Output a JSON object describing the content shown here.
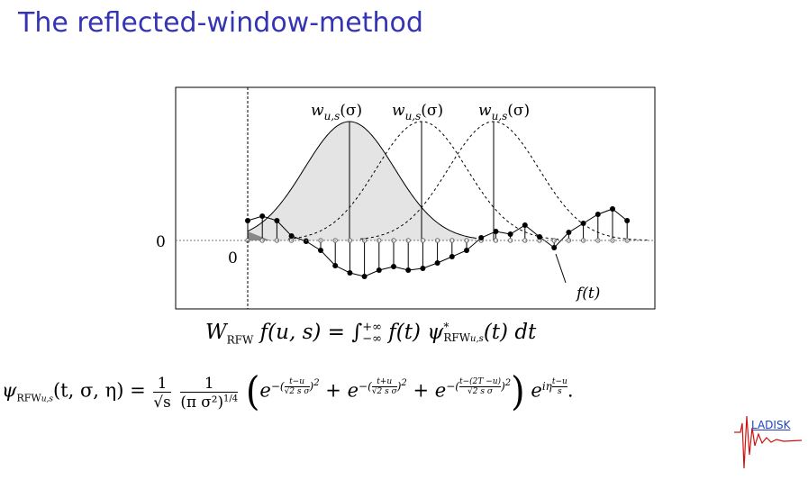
{
  "header": {
    "title": "The reflected-window-method"
  },
  "diagram": {
    "windows": [
      {
        "name": "w",
        "sub": "u,s",
        "arg": "(σ)"
      },
      {
        "name": "w",
        "sub": "u,s",
        "arg": "(σ)"
      },
      {
        "name": "w",
        "sub": "u,s",
        "arg": "(σ)"
      }
    ],
    "zero_axis": "0",
    "zero_time": "0",
    "signal": "f(t)"
  },
  "transform": {
    "lhs_w": "W",
    "lhs_sub": "RFW",
    "lhs_rest": "f(u, s) =",
    "integral": "∫",
    "upper": "+∞",
    "lower": "−∞",
    "rhs_f": "f(t)",
    "psi": "ψ",
    "psi_sup": "*",
    "psi_sub": "RFW",
    "psi_subsub": "u,s",
    "rhs_rest": "(t) dt"
  },
  "window_function": {
    "psi": "ψ",
    "sub": "RFW",
    "subsub": "u,s",
    "args": "(t, σ, η) =",
    "f1_num": "1",
    "f1_den": "√s",
    "f2_num": "1",
    "f2_den": "(π σ²)",
    "f2_den_exp": "1/4",
    "open": "(",
    "terms": [
      {
        "base": "e",
        "sign": "−(",
        "num": "t−u",
        "den": "√2 s σ",
        "close": ")",
        "power": "2"
      },
      {
        "base": "e",
        "sign": "−(",
        "num": "t+u",
        "den": "√2 s σ",
        "close": ")",
        "power": "2"
      },
      {
        "base": "e",
        "sign": "−(",
        "num": "t−(2T −u)",
        "den": "√2 s σ",
        "close": ")",
        "power": "2"
      }
    ],
    "plus_1": "+",
    "plus_2": "+",
    "close": ")",
    "final_base": "e",
    "final_exp": "iη",
    "final_num": "t−u",
    "final_den": "s",
    "period": "."
  },
  "logo": "LADISK"
}
